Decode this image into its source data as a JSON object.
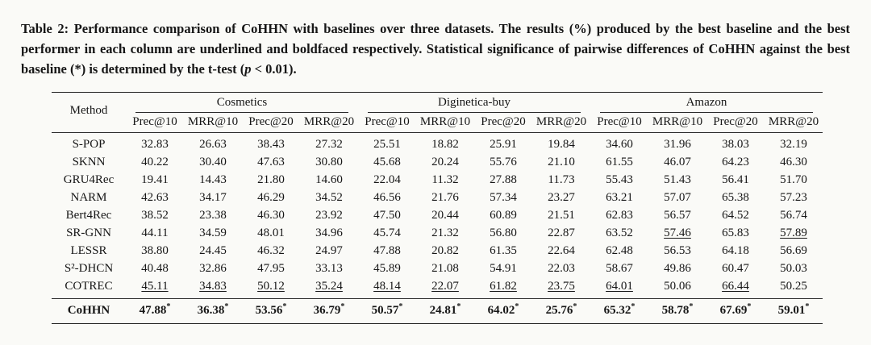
{
  "caption": {
    "text_before_p": "Table 2: Performance comparison of CoHHN with baselines over three datasets. The results (%) produced by the best baseline and the best performer in each column are underlined and boldfaced respectively. Statistical significance of pairwise differences of CoHHN against the best baseline (*) is determined by the t-test (",
    "p_symbol": "p",
    "text_after_p": " < 0.01)."
  },
  "table": {
    "method_header": "Method",
    "groups": [
      {
        "name": "Cosmetics",
        "columns": [
          "Prec@10",
          "MRR@10",
          "Prec@20",
          "MRR@20"
        ]
      },
      {
        "name": "Diginetica-buy",
        "columns": [
          "Prec@10",
          "MRR@10",
          "Prec@20",
          "MRR@20"
        ]
      },
      {
        "name": "Amazon",
        "columns": [
          "Prec@10",
          "MRR@10",
          "Prec@20",
          "MRR@20"
        ]
      }
    ],
    "rows": [
      {
        "method": "S-POP",
        "values": [
          "32.83",
          "26.63",
          "38.43",
          "27.32",
          "25.51",
          "18.82",
          "25.91",
          "19.84",
          "34.60",
          "31.96",
          "38.03",
          "32.19"
        ],
        "underlined": []
      },
      {
        "method": "SKNN",
        "values": [
          "40.22",
          "30.40",
          "47.63",
          "30.80",
          "45.68",
          "20.24",
          "55.76",
          "21.10",
          "61.55",
          "46.07",
          "64.23",
          "46.30"
        ],
        "underlined": []
      },
      {
        "method": "GRU4Rec",
        "values": [
          "19.41",
          "14.43",
          "21.80",
          "14.60",
          "22.04",
          "11.32",
          "27.88",
          "11.73",
          "55.43",
          "51.43",
          "56.41",
          "51.70"
        ],
        "underlined": []
      },
      {
        "method": "NARM",
        "values": [
          "42.63",
          "34.17",
          "46.29",
          "34.52",
          "46.56",
          "21.76",
          "57.34",
          "23.27",
          "63.21",
          "57.07",
          "65.38",
          "57.23"
        ],
        "underlined": []
      },
      {
        "method": "Bert4Rec",
        "values": [
          "38.52",
          "23.38",
          "46.30",
          "23.92",
          "47.50",
          "20.44",
          "60.89",
          "21.51",
          "62.83",
          "56.57",
          "64.52",
          "56.74"
        ],
        "underlined": []
      },
      {
        "method": "SR-GNN",
        "values": [
          "44.11",
          "34.59",
          "48.01",
          "34.96",
          "45.74",
          "21.32",
          "56.80",
          "22.87",
          "63.52",
          "57.46",
          "65.83",
          "57.89"
        ],
        "underlined": [
          9,
          11
        ]
      },
      {
        "method": "LESSR",
        "values": [
          "38.80",
          "24.45",
          "46.32",
          "24.97",
          "47.88",
          "20.82",
          "61.35",
          "22.64",
          "62.48",
          "56.53",
          "64.18",
          "56.69"
        ],
        "underlined": []
      },
      {
        "method": "S²-DHCN",
        "values": [
          "40.48",
          "32.86",
          "47.95",
          "33.13",
          "45.89",
          "21.08",
          "54.91",
          "22.03",
          "58.67",
          "49.86",
          "60.47",
          "50.03"
        ],
        "underlined": []
      },
      {
        "method": "COTREC",
        "values": [
          "45.11",
          "34.83",
          "50.12",
          "35.24",
          "48.14",
          "22.07",
          "61.82",
          "23.75",
          "64.01",
          "50.06",
          "66.44",
          "50.25"
        ],
        "underlined": [
          0,
          1,
          2,
          3,
          4,
          5,
          6,
          7,
          8,
          10
        ]
      }
    ],
    "final_row": {
      "method": "CoHHN",
      "values": [
        "47.88",
        "36.38",
        "53.56",
        "36.79",
        "50.57",
        "24.81",
        "64.02",
        "25.76",
        "65.32",
        "58.78",
        "67.69",
        "59.01"
      ],
      "significance_marker": "*"
    }
  }
}
